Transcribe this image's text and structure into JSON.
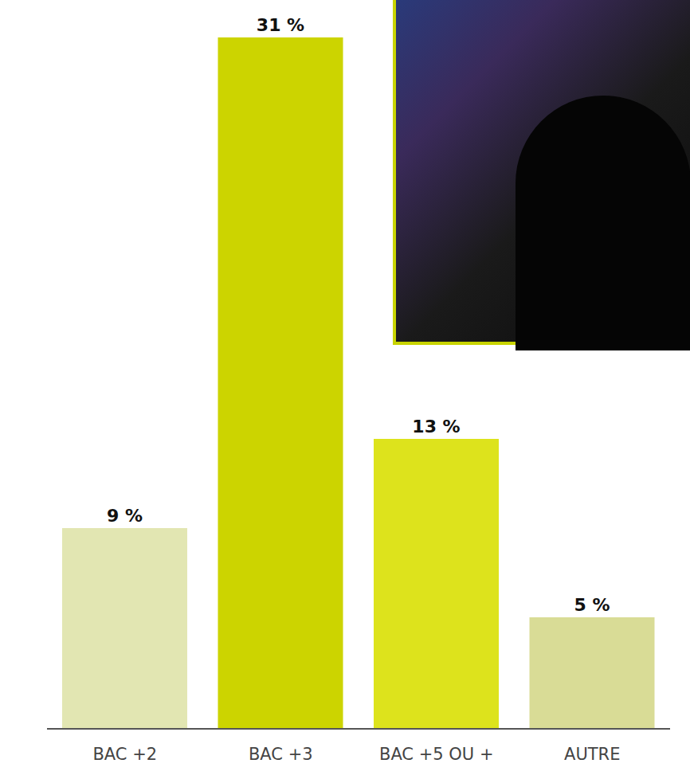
{
  "chart_data": {
    "type": "bar",
    "categories": [
      "BAC +2",
      "BAC +3",
      "BAC +5 OU +",
      "AUTRE"
    ],
    "values": [
      9,
      31,
      13,
      5
    ],
    "value_labels": [
      "9 %",
      "31 %",
      "13 %",
      "5 %"
    ],
    "colors": [
      "#e2e6b2",
      "#ccd400",
      "#dde31c",
      "#d9dc96"
    ],
    "ylim": [
      0,
      32
    ],
    "data_labels": true,
    "tick_labels": "x",
    "grid": false
  }
}
